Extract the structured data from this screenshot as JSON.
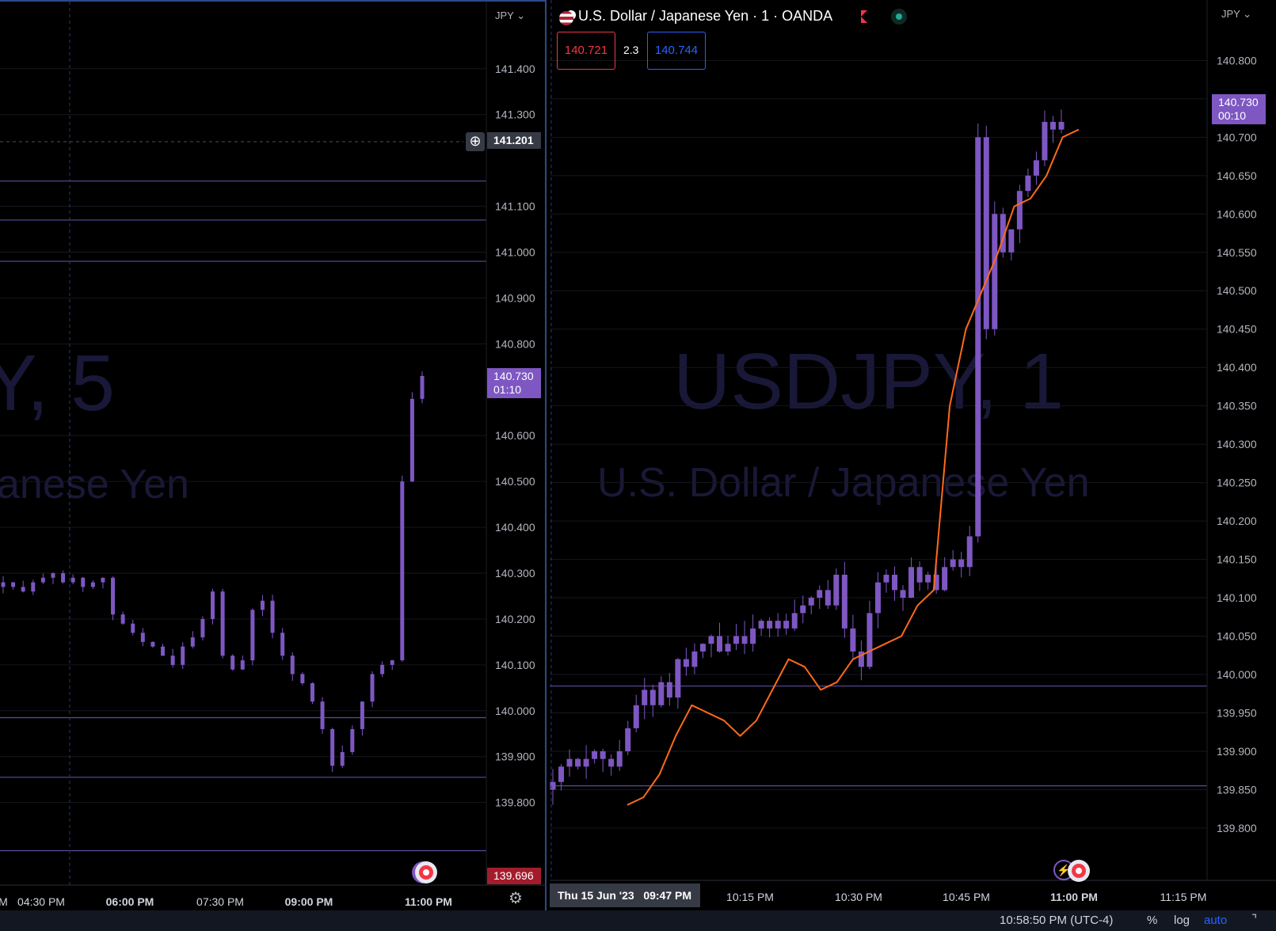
{
  "left_chart": {
    "watermark_symbol": "Y, 5",
    "watermark_name": "anese Yen",
    "currency": "JPY",
    "price_ticks": [
      "141.400",
      "141.300",
      "141.100",
      "141.000",
      "140.900",
      "140.800",
      "140.600",
      "140.500",
      "140.400",
      "140.300",
      "140.200",
      "140.100",
      "140.000",
      "139.900",
      "139.800"
    ],
    "crosshair_price": "141.201",
    "last_price": "140.730",
    "countdown": "01:10",
    "low_price": "139.696",
    "time_ticks": [
      {
        "label": "M",
        "bold": false
      },
      {
        "label": "04:30 PM",
        "bold": false
      },
      {
        "label": "06:00 PM",
        "bold": true
      },
      {
        "label": "07:30 PM",
        "bold": false
      },
      {
        "label": "09:00 PM",
        "bold": true
      },
      {
        "label": "11:00 PM",
        "bold": true
      }
    ],
    "colors": {
      "candle": "#7e57c2",
      "level_line": "#5b4b9a",
      "low_tag": "#a31c2c"
    }
  },
  "right_chart": {
    "title": "U.S. Dollar / Japanese Yen · 1 · OANDA",
    "watermark_symbol": "USDJPY, 1",
    "watermark_name": "U.S. Dollar / Japanese Yen",
    "currency": "JPY",
    "bid": "140.721",
    "spread": "2.3",
    "ask": "140.744",
    "price_ticks": [
      "140.800",
      "140.750",
      "140.700",
      "140.650",
      "140.600",
      "140.550",
      "140.500",
      "140.450",
      "140.400",
      "140.350",
      "140.300",
      "140.250",
      "140.200",
      "140.150",
      "140.100",
      "140.050",
      "140.000",
      "139.950",
      "139.900",
      "139.850",
      "139.800"
    ],
    "last_price": "140.730",
    "countdown": "00:10",
    "date_label": "Thu 15 Jun '23",
    "cursor_time": "09:47 PM",
    "time_ticks": [
      {
        "label": "10:15 PM",
        "bold": false
      },
      {
        "label": "10:30 PM",
        "bold": false
      },
      {
        "label": "10:45 PM",
        "bold": false
      },
      {
        "label": "11:00 PM",
        "bold": true
      },
      {
        "label": "11:15 PM",
        "bold": false
      }
    ],
    "colors": {
      "candle": "#7e57c2",
      "ma_line": "#ff6a1a",
      "bid": "#f23645",
      "ask": "#2962ff"
    }
  },
  "status_bar": {
    "clock": "10:58:50 PM (UTC-4)",
    "percent": "%",
    "log": "log",
    "auto": "auto"
  },
  "chart_data": [
    {
      "type": "candlestick",
      "symbol": "USDJPY",
      "timeframe": "5",
      "ylim": [
        139.72,
        141.46
      ],
      "x": [
        "04:30 PM",
        "06:00 PM",
        "07:30 PM",
        "09:00 PM",
        "11:00 PM"
      ],
      "horizontal_levels": [
        141.155,
        141.07,
        140.98,
        139.985,
        139.855,
        139.695
      ],
      "close_series": [
        140.28,
        140.27,
        140.26,
        140.28,
        140.29,
        140.3,
        140.28,
        140.29,
        140.27,
        140.28,
        140.29,
        140.21,
        140.19,
        140.17,
        140.15,
        140.14,
        140.12,
        140.1,
        140.14,
        140.16,
        140.2,
        140.26,
        140.12,
        140.09,
        140.11,
        140.22,
        140.24,
        140.17,
        140.12,
        140.08,
        140.06,
        140.02,
        139.96,
        139.88,
        139.91,
        139.96,
        140.02,
        140.08,
        140.1,
        140.11,
        140.5,
        140.68,
        140.73
      ]
    },
    {
      "type": "candlestick",
      "symbol": "USDJPY",
      "timeframe": "1",
      "ylim": [
        139.77,
        140.82
      ],
      "x": [
        "10:15 PM",
        "10:30 PM",
        "10:45 PM",
        "11:00 PM",
        "11:15 PM"
      ],
      "horizontal_levels": [
        139.985,
        139.855
      ],
      "close_series": [
        139.86,
        139.88,
        139.89,
        139.88,
        139.89,
        139.9,
        139.89,
        139.88,
        139.9,
        139.93,
        139.96,
        139.98,
        139.96,
        139.99,
        139.97,
        140.02,
        140.01,
        140.03,
        140.04,
        140.05,
        140.03,
        140.04,
        140.05,
        140.04,
        140.06,
        140.07,
        140.06,
        140.07,
        140.06,
        140.08,
        140.09,
        140.1,
        140.11,
        140.09,
        140.13,
        140.06,
        140.03,
        140.01,
        140.08,
        140.12,
        140.13,
        140.11,
        140.1,
        140.14,
        140.12,
        140.13,
        140.11,
        140.14,
        140.15,
        140.14,
        140.18,
        140.7,
        140.45,
        140.6,
        140.55,
        140.58,
        140.63,
        140.65,
        140.67,
        140.72,
        140.71,
        140.72
      ],
      "ma_series": [
        139.83,
        139.84,
        139.87,
        139.92,
        139.96,
        139.95,
        139.94,
        139.92,
        139.94,
        139.98,
        140.02,
        140.01,
        139.98,
        139.99,
        140.02,
        140.03,
        140.04,
        140.05,
        140.09,
        140.11,
        140.35,
        140.45,
        140.5,
        140.55,
        140.61,
        140.62,
        140.65,
        140.7,
        140.71
      ]
    }
  ]
}
